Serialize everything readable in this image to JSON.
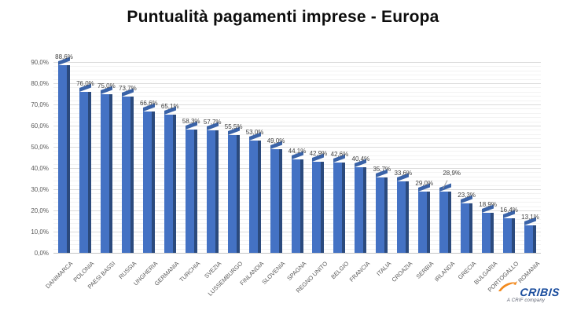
{
  "title": "Puntualità pagamenti imprese - Europa",
  "chart_data": {
    "type": "bar",
    "title": "Puntualità pagamenti imprese - Europa",
    "categories": [
      "DANIMARCA",
      "POLONIA",
      "PAESI BASSI",
      "RUSSIA",
      "UNGHERIA",
      "GERMANIA",
      "TURCHIA",
      "SVEZIA",
      "LUSSEMBURGO",
      "FINLANDIA",
      "SLOVENIA",
      "SPAGNA",
      "REGNO UNITO",
      "BELGIO",
      "FRANCIA",
      "ITALIA",
      "CROAZIA",
      "SERBIA",
      "IRLANDA",
      "GRECIA",
      "BULGARIA",
      "PORTOGALLO",
      "ROMANIA"
    ],
    "values": [
      88.6,
      76.0,
      75.0,
      73.7,
      66.6,
      65.1,
      58.3,
      57.7,
      55.5,
      53.0,
      49.0,
      44.1,
      42.9,
      42.6,
      40.4,
      35.7,
      33.6,
      29.0,
      28.9,
      23.3,
      18.9,
      16.4,
      13.1
    ],
    "value_labels": [
      "88,6%",
      "76,0%",
      "75,0%",
      "73,7%",
      "66,6%",
      "65,1%",
      "58,3%",
      "57,7%",
      "55,5%",
      "53,0%",
      "49,0%",
      "44,1%",
      "42,9%",
      "42,6%",
      "40,4%",
      "35,7%",
      "33,6%",
      "29,0%",
      "28,9%",
      "23,3%",
      "18,9%",
      "16,4%",
      "13,1%"
    ],
    "y_ticks": [
      "0,0%",
      "10,0%",
      "20,0%",
      "30,0%",
      "40,0%",
      "50,0%",
      "60,0%",
      "70,0%",
      "80,0%",
      "90,0%"
    ],
    "ylim": [
      0,
      90
    ],
    "y_major_step": 10,
    "y_minor_step": 2,
    "xlabel": "",
    "ylabel": "",
    "legend": false,
    "grid": true,
    "raised_label_index": 18,
    "bar_face_color": "#4472C4",
    "bar_side_color": "#2B4A7D",
    "bar_cap_color": "#3A63A8"
  },
  "logo": {
    "brand": "CRIBIS",
    "tagline": "A CRIF company",
    "brand_color": "#1C4E9E",
    "accent_color": "#F28A1E",
    "swoosh_icon": "orange-swoosh-icon"
  }
}
